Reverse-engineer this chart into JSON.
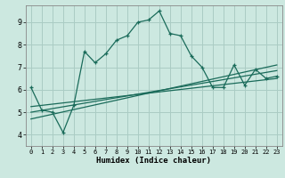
{
  "xlabel": "Humidex (Indice chaleur)",
  "bg_color": "#cce8e0",
  "grid_color": "#aaccc4",
  "line_color": "#1a6b5a",
  "xlim": [
    -0.5,
    23.5
  ],
  "ylim": [
    3.5,
    9.75
  ],
  "x_ticks": [
    0,
    1,
    2,
    3,
    4,
    5,
    6,
    7,
    8,
    9,
    10,
    11,
    12,
    13,
    14,
    15,
    16,
    17,
    18,
    19,
    20,
    21,
    22,
    23
  ],
  "y_ticks": [
    4,
    5,
    6,
    7,
    8,
    9
  ],
  "main_x": [
    0,
    1,
    2,
    3,
    4,
    5,
    6,
    7,
    8,
    9,
    10,
    11,
    12,
    13,
    14,
    15,
    16,
    17,
    18,
    19,
    20,
    21,
    22,
    23
  ],
  "main_y": [
    6.1,
    5.1,
    5.0,
    4.1,
    5.3,
    7.7,
    7.2,
    7.6,
    8.2,
    8.4,
    9.0,
    9.1,
    9.5,
    8.5,
    8.4,
    7.5,
    7.0,
    6.1,
    6.1,
    7.1,
    6.2,
    6.9,
    6.5,
    6.6
  ],
  "trend1_x": [
    0,
    23
  ],
  "trend1_y": [
    5.0,
    6.85
  ],
  "trend2_x": [
    0,
    23
  ],
  "trend2_y": [
    4.7,
    7.1
  ],
  "trend3_x": [
    0,
    23
  ],
  "trend3_y": [
    5.25,
    6.5
  ],
  "spine_color": "#888888"
}
